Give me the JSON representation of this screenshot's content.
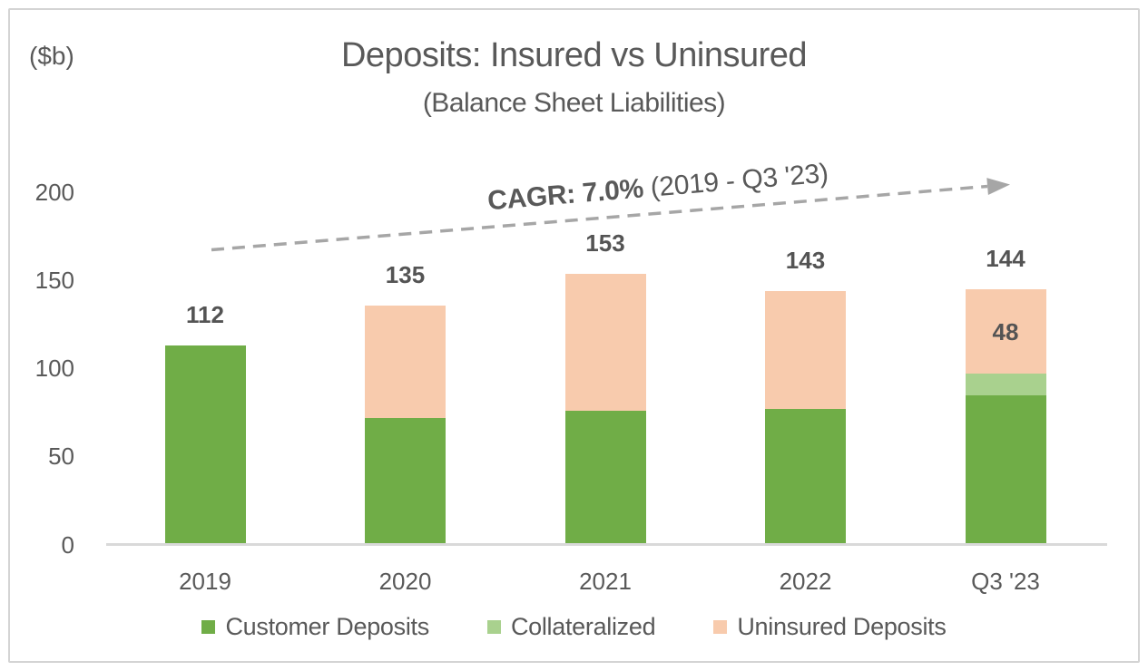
{
  "colors": {
    "customer_deposits": "#70AD47",
    "collateralized": "#A9D18E",
    "uninsured_deposits": "#F8CBAD",
    "text": "#595959",
    "arrow": "#A6A6A6",
    "axis_line": "#D9D9D9"
  },
  "chart_data": {
    "type": "bar",
    "stacked": true,
    "title": "Deposits: Insured vs Uninsured",
    "subtitle": "(Balance Sheet Liabilities)",
    "units_label": "($b)",
    "annotation": {
      "bold": "CAGR: 7.0%",
      "rest": " (2019 - Q3 '23)",
      "arrow_style": "dashed-rising-right"
    },
    "categories": [
      "2019",
      "2020",
      "2021",
      "2022",
      "Q3 '23"
    ],
    "series": [
      {
        "name": "Customer Deposits",
        "color": "#70AD47",
        "values": [
          112,
          71,
          75,
          76,
          84
        ]
      },
      {
        "name": "Collateralized",
        "color": "#A9D18E",
        "values": [
          0,
          0,
          0,
          0,
          12
        ]
      },
      {
        "name": "Uninsured Deposits",
        "color": "#F8CBAD",
        "values": [
          0,
          64,
          78,
          67,
          48
        ]
      }
    ],
    "totals": [
      112,
      135,
      153,
      143,
      144
    ],
    "segment_labels": [
      {
        "category": "Q3 '23",
        "series": "Uninsured Deposits",
        "text": "48"
      }
    ],
    "yticks": [
      0,
      50,
      100,
      150,
      200
    ],
    "ylim": [
      0,
      200
    ],
    "grid": false,
    "legend_position": "bottom"
  }
}
